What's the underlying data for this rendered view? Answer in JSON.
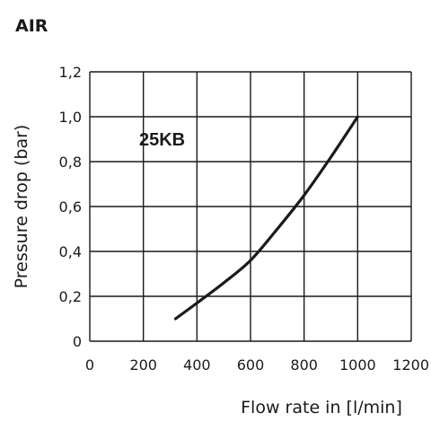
{
  "heading": "AIR",
  "chart_data": {
    "type": "line",
    "title": "",
    "xlabel": "Flow rate in [l/min]",
    "ylabel": "Pressure drop (bar)",
    "xlim": [
      0,
      1200
    ],
    "ylim": [
      0,
      1.2
    ],
    "xticks": [
      0,
      200,
      400,
      600,
      800,
      1000,
      1200
    ],
    "yticks": [
      0,
      0.2,
      0.4,
      0.6,
      0.8,
      1.0,
      1.2
    ],
    "xtick_labels": [
      "0",
      "200",
      "400",
      "600",
      "800",
      "1000",
      "1200"
    ],
    "ytick_labels": [
      "0",
      "0,2",
      "0,4",
      "0,6",
      "0,8",
      "1,0",
      "1,2"
    ],
    "grid": true,
    "annotations": [
      {
        "text": "25KB",
        "x": 270,
        "y": 0.9
      }
    ],
    "series": [
      {
        "name": "25KB",
        "color": "#1a1a1a",
        "x": [
          320,
          400,
          500,
          600,
          700,
          800,
          900,
          1000
        ],
        "y": [
          0.1,
          0.17,
          0.26,
          0.36,
          0.5,
          0.65,
          0.82,
          1.0
        ]
      }
    ]
  }
}
